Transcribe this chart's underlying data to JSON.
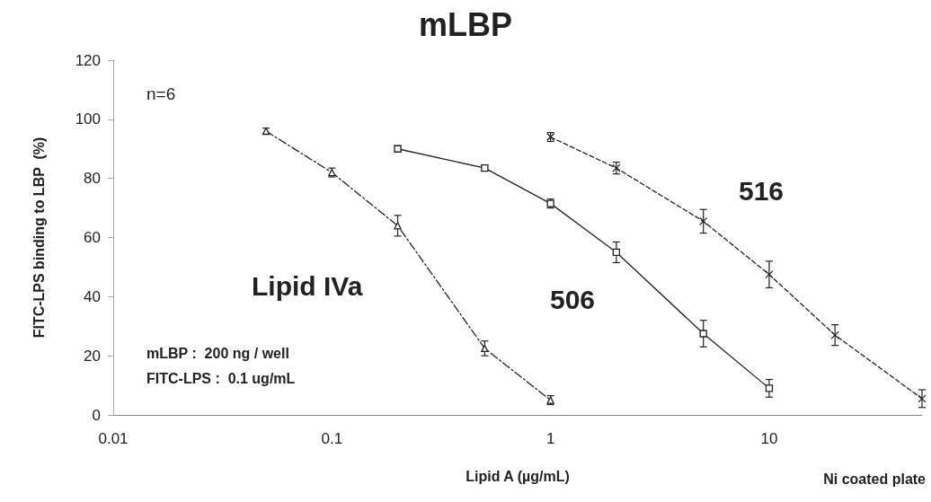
{
  "chart_data": {
    "type": "line",
    "title": "mLBP",
    "xlabel": "Lipid A (µg/mL)",
    "ylabel": "FITC-LPS binding to LBP  (%)",
    "log": "x",
    "xlim": [
      0.01,
      50
    ],
    "xticks": [
      0.01,
      0.1,
      1,
      10
    ],
    "ylim": [
      0,
      120
    ],
    "yticks": [
      0,
      20,
      40,
      60,
      80,
      100,
      120
    ],
    "grid": false,
    "series": [
      {
        "color": "#222222",
        "marker": "triangle",
        "line_style": "dashdot",
        "x": [
          0.05,
          0.1,
          0.2,
          0.5,
          1
        ],
        "values": [
          96,
          82,
          64,
          22.5,
          5
        ],
        "errors": [
          1,
          1.5,
          3.5,
          2.5,
          1.5
        ]
      },
      {
        "color": "#222222",
        "marker": "square",
        "line_style": "solid",
        "x": [
          0.2,
          0.5,
          1,
          2,
          5,
          10
        ],
        "values": [
          90,
          83.5,
          71.5,
          55,
          27.5,
          9
        ],
        "errors": [
          1,
          1,
          1.5,
          3.5,
          4.5,
          3
        ]
      },
      {
        "color": "#222222",
        "marker": "cross",
        "line_style": "dashed",
        "x": [
          1,
          2,
          5,
          10,
          20,
          50
        ],
        "values": [
          94,
          83.5,
          65.5,
          47.5,
          27,
          5.5
        ],
        "errors": [
          1.5,
          2,
          4,
          4.5,
          3.5,
          3
        ]
      }
    ],
    "annotations": [
      "Lipid IVa",
      "506",
      "516",
      "n=6",
      "mLBP :  200 ng / well",
      "FITC-LPS :  0.1 ug/mL",
      "Ni coated plate"
    ]
  }
}
